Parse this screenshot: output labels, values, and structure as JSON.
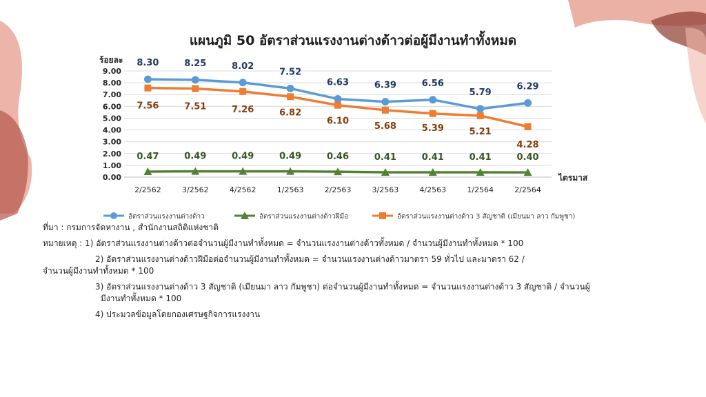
{
  "chart_data": {
    "type": "line",
    "title": "แผนภูมิ 50 อัตราส่วนแรงงานต่างด้าวต่อผู้มีงานทำทั้งหมด",
    "ylabel": "ร้อยละ",
    "xlabel": "ไตรมาส",
    "categories": [
      "2/2562",
      "3/2562",
      "4/2562",
      "1/2563",
      "2/2563",
      "3/2563",
      "4/2563",
      "1/2564",
      "2/2564"
    ],
    "ylim": [
      0,
      9
    ],
    "yticks": [
      "0.00",
      "1.00",
      "2.00",
      "3.00",
      "4.00",
      "5.00",
      "6.00",
      "7.00",
      "8.00",
      "9.00"
    ],
    "grid": true,
    "legend_position": "bottom",
    "series": [
      {
        "name": "อัตราส่วนแรงงานต่างด้าว",
        "color": "#5b9bd5",
        "marker": "circle",
        "label_color": "#1f3864",
        "values": [
          8.3,
          8.25,
          8.02,
          7.52,
          6.63,
          6.39,
          6.56,
          5.79,
          6.29
        ],
        "labels": [
          "8.30",
          "8.25",
          "8.02",
          "7.52",
          "6.63",
          "6.39",
          "6.56",
          "5.79",
          "6.29"
        ]
      },
      {
        "name": "อัตราส่วนแรงงานต่างด้าวฝีมือ",
        "color": "#548235",
        "marker": "triangle",
        "label_color": "#375623",
        "values": [
          0.47,
          0.49,
          0.49,
          0.49,
          0.46,
          0.41,
          0.41,
          0.41,
          0.4
        ],
        "labels": [
          "0.47",
          "0.49",
          "0.49",
          "0.49",
          "0.46",
          "0.41",
          "0.41",
          "0.41",
          "0.40"
        ]
      },
      {
        "name": "อัตราส่วนแรงงานต่างด้าว 3 สัญชาติ (เมียนมา ลาว กัมพูชา)",
        "color": "#ed7d31",
        "marker": "square",
        "label_color": "#843c0c",
        "values": [
          7.56,
          7.51,
          7.26,
          6.82,
          6.1,
          5.68,
          5.39,
          5.21,
          4.28
        ],
        "labels": [
          "7.56",
          "7.51",
          "7.26",
          "6.82",
          "6.10",
          "5.68",
          "5.39",
          "5.21",
          "4.28"
        ]
      }
    ]
  },
  "notes": {
    "source": "ที่มา : กรมการจัดหางาน , สำนักงานสถิติแห่งชาติ",
    "note1": "หมายเหตุ : 1) อัตราส่วนแรงงานต่างด้าวต่อจำนวนผู้มีงานทำทั้งหมด = จำนวนแรงงานต่างด้าวทั้งหมด / จำนวนผู้มีงานทำทั้งหมด * 100",
    "note2a": "2) อัตราส่วนแรงงานต่างด้าวฝีมือต่อจำนวนผู้มีงานทำทั้งหมด = จำนวนแรงงานต่างด้าวมาตรา 59 ทั่วไป และมาตรา 62 /",
    "note2b": "จำนวนผู้มีงานทำทั้งหมด * 100",
    "note3a": "3) อัตราส่วนแรงงานต่างด้าว 3 สัญชาติ (เมียนมา ลาว กัมพูชา) ต่อจำนวนผู้มีงานทำทั้งหมด = จำนวนแรงงานต่างด้าว 3 สัญชาติ / จำนวนผู้",
    "note3b": "มีงานทำทั้งหมด * 100",
    "note4": "4) ประมวลข้อมูลโดยกองเศรษฐกิจการแรงงาน"
  }
}
